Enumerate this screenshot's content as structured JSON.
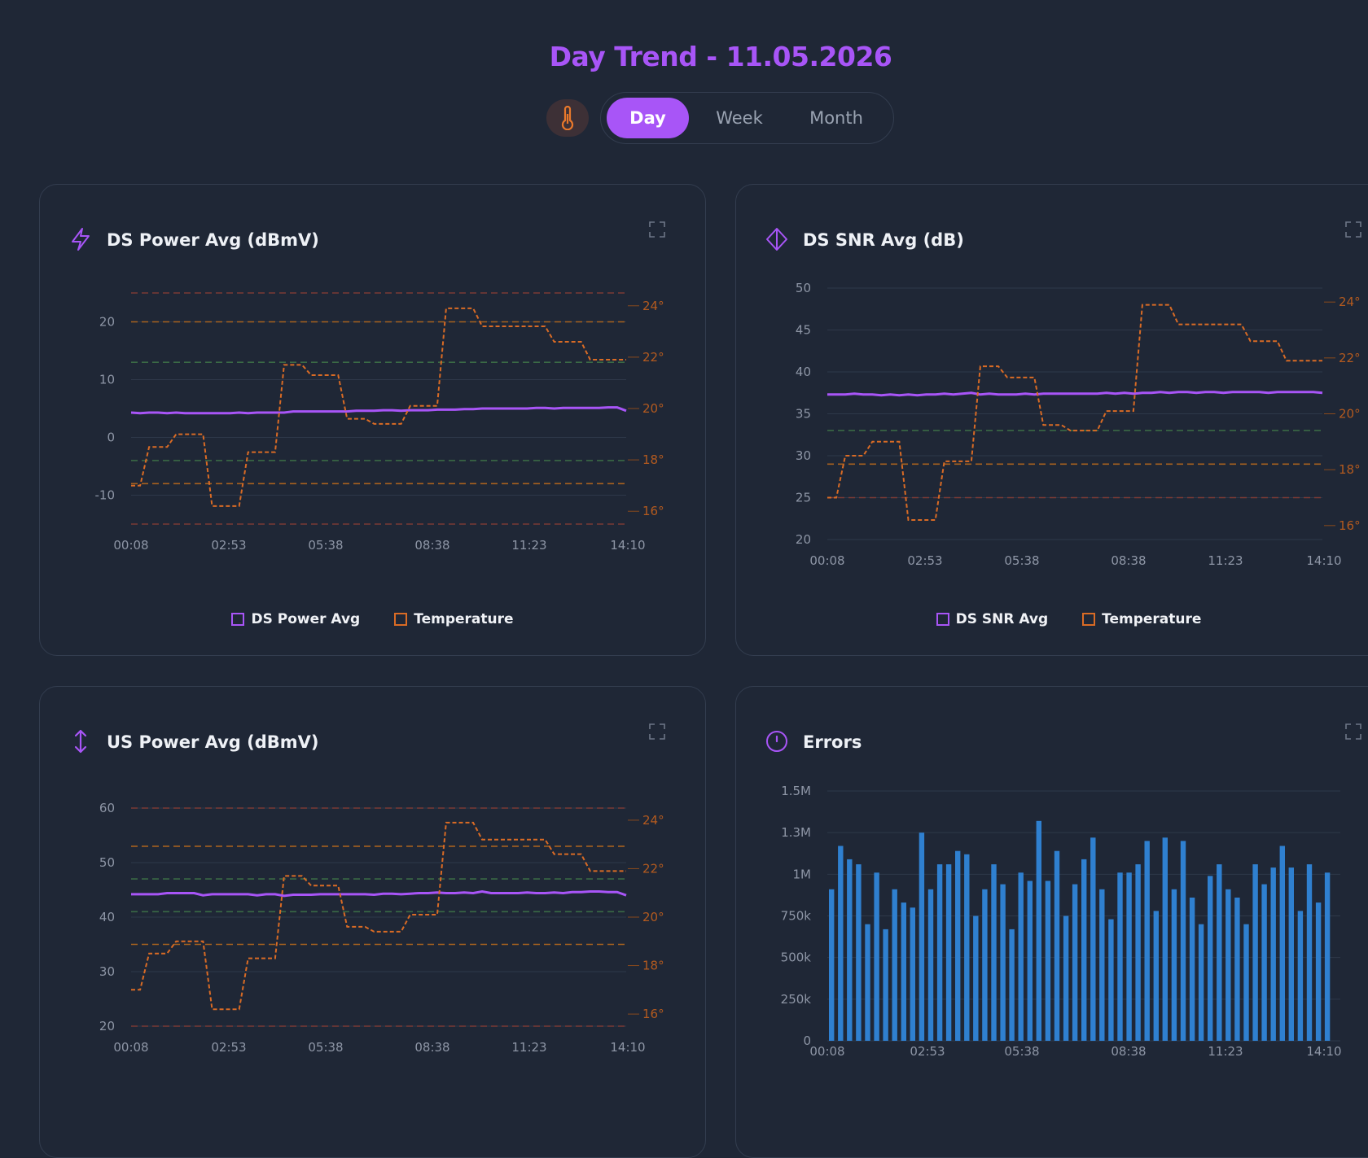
{
  "page": {
    "title": "Day Trend - 11.05.2026"
  },
  "controls": {
    "temperature_toggle_icon": "thermometer-icon",
    "ranges": [
      "Day",
      "Week",
      "Month"
    ],
    "active_range": "Day"
  },
  "colors": {
    "accent": "#a855f7",
    "temperature": "#d96b25",
    "errors_bar": "#2f80d0",
    "band_red": "#7a3a35",
    "band_orange": "#a8621f",
    "band_green": "#3a6a45"
  },
  "cards": {
    "ds_power": {
      "title": "DS Power Avg (dBmV)",
      "icon": "lightning-icon",
      "legend": [
        "DS Power Avg",
        "Temperature"
      ]
    },
    "ds_snr": {
      "title": "DS SNR Avg (dB)",
      "icon": "diamond-icon",
      "legend": [
        "DS SNR Avg",
        "Temperature"
      ]
    },
    "us_power": {
      "title": "US Power Avg (dBmV)",
      "icon": "up-down-arrow-icon",
      "legend": [
        "US Power Avg",
        "Temperature"
      ]
    },
    "errors": {
      "title": "Errors",
      "icon": "alert-circle-icon"
    }
  },
  "chart_data": [
    {
      "type": "line",
      "title": "DS Power Avg (dBmV)",
      "x_ticks": [
        "00:08",
        "02:53",
        "05:38",
        "08:38",
        "11:23",
        "14:10"
      ],
      "y_ticks": [
        20,
        10,
        0,
        -10
      ],
      "ylim": [
        -15,
        25
      ],
      "y2_ticks": [
        "24°",
        "22°",
        "20°",
        "18°",
        "16°"
      ],
      "y2lim": [
        15.5,
        24.5
      ],
      "thresholds": [
        {
          "value": 25,
          "color": "red"
        },
        {
          "value": 20,
          "color": "orange"
        },
        {
          "value": 13,
          "color": "green"
        },
        {
          "value": -4,
          "color": "green"
        },
        {
          "value": -8,
          "color": "orange"
        },
        {
          "value": -15,
          "color": "red"
        }
      ],
      "series": [
        {
          "name": "DS Power Avg",
          "values": [
            4.3,
            4.2,
            4.3,
            4.3,
            4.2,
            4.3,
            4.2,
            4.2,
            4.2,
            4.2,
            4.2,
            4.2,
            4.3,
            4.2,
            4.3,
            4.3,
            4.3,
            4.3,
            4.5,
            4.5,
            4.5,
            4.5,
            4.5,
            4.5,
            4.5,
            4.6,
            4.6,
            4.6,
            4.7,
            4.7,
            4.6,
            4.7,
            4.7,
            4.7,
            4.8,
            4.8,
            4.8,
            4.9,
            4.9,
            5.0,
            5.0,
            5.0,
            5.0,
            5.0,
            5.0,
            5.1,
            5.1,
            5.0,
            5.1,
            5.1,
            5.1,
            5.1,
            5.1,
            5.2,
            5.2,
            4.6
          ]
        },
        {
          "name": "Temperature",
          "y_axis": "right",
          "values": [
            17,
            17,
            18.5,
            18.5,
            18.5,
            19,
            19,
            19,
            19,
            16.2,
            16.2,
            16.2,
            16.2,
            18.3,
            18.3,
            18.3,
            18.3,
            21.7,
            21.7,
            21.7,
            21.3,
            21.3,
            21.3,
            21.3,
            19.6,
            19.6,
            19.6,
            19.4,
            19.4,
            19.4,
            19.4,
            20.1,
            20.1,
            20.1,
            20.1,
            23.9,
            23.9,
            23.9,
            23.9,
            23.2,
            23.2,
            23.2,
            23.2,
            23.2,
            23.2,
            23.2,
            23.2,
            22.6,
            22.6,
            22.6,
            22.6,
            21.9,
            21.9,
            21.9,
            21.9,
            21.9
          ]
        }
      ]
    },
    {
      "type": "line",
      "title": "DS SNR Avg (dB)",
      "x_ticks": [
        "00:08",
        "02:53",
        "05:38",
        "08:38",
        "11:23",
        "14:10"
      ],
      "y_ticks": [
        50,
        45,
        40,
        35,
        30,
        25,
        20
      ],
      "ylim": [
        20,
        50
      ],
      "y2_ticks": [
        "24°",
        "22°",
        "20°",
        "18°",
        "16°"
      ],
      "y2lim": [
        15.5,
        24.5
      ],
      "thresholds": [
        {
          "value": 33,
          "color": "green"
        },
        {
          "value": 29,
          "color": "orange"
        },
        {
          "value": 25,
          "color": "red"
        }
      ],
      "series": [
        {
          "name": "DS SNR Avg",
          "values": [
            37.3,
            37.3,
            37.3,
            37.4,
            37.3,
            37.3,
            37.2,
            37.3,
            37.2,
            37.3,
            37.2,
            37.3,
            37.3,
            37.4,
            37.3,
            37.4,
            37.5,
            37.3,
            37.4,
            37.3,
            37.3,
            37.3,
            37.4,
            37.3,
            37.4,
            37.4,
            37.4,
            37.4,
            37.4,
            37.4,
            37.4,
            37.5,
            37.4,
            37.5,
            37.4,
            37.5,
            37.5,
            37.6,
            37.5,
            37.6,
            37.6,
            37.5,
            37.6,
            37.6,
            37.5,
            37.6,
            37.6,
            37.6,
            37.6,
            37.5,
            37.6,
            37.6,
            37.6,
            37.6,
            37.6,
            37.5
          ]
        },
        {
          "name": "Temperature",
          "y_axis": "right",
          "values": [
            17,
            17,
            18.5,
            18.5,
            18.5,
            19,
            19,
            19,
            19,
            16.2,
            16.2,
            16.2,
            16.2,
            18.3,
            18.3,
            18.3,
            18.3,
            21.7,
            21.7,
            21.7,
            21.3,
            21.3,
            21.3,
            21.3,
            19.6,
            19.6,
            19.6,
            19.4,
            19.4,
            19.4,
            19.4,
            20.1,
            20.1,
            20.1,
            20.1,
            23.9,
            23.9,
            23.9,
            23.9,
            23.2,
            23.2,
            23.2,
            23.2,
            23.2,
            23.2,
            23.2,
            23.2,
            22.6,
            22.6,
            22.6,
            22.6,
            21.9,
            21.9,
            21.9,
            21.9,
            21.9
          ]
        }
      ]
    },
    {
      "type": "line",
      "title": "US Power Avg (dBmV)",
      "x_ticks": [
        "00:08",
        "02:53",
        "05:38",
        "08:38",
        "11:23",
        "14:10"
      ],
      "y_ticks": [
        60,
        50,
        40,
        30,
        20
      ],
      "ylim": [
        20,
        60
      ],
      "y2_ticks": [
        "24°",
        "22°",
        "20°",
        "18°",
        "16°"
      ],
      "y2lim": [
        15.5,
        24.5
      ],
      "thresholds": [
        {
          "value": 60,
          "color": "red"
        },
        {
          "value": 53,
          "color": "orange"
        },
        {
          "value": 47,
          "color": "green"
        },
        {
          "value": 41,
          "color": "green"
        },
        {
          "value": 35,
          "color": "orange"
        },
        {
          "value": 20,
          "color": "red"
        }
      ],
      "series": [
        {
          "name": "US Power Avg",
          "values": [
            44.2,
            44.2,
            44.2,
            44.2,
            44.4,
            44.4,
            44.4,
            44.4,
            44.0,
            44.2,
            44.2,
            44.2,
            44.2,
            44.2,
            44.0,
            44.2,
            44.2,
            43.9,
            44.1,
            44.1,
            44.1,
            44.2,
            44.2,
            44.2,
            44.2,
            44.2,
            44.2,
            44.1,
            44.3,
            44.3,
            44.2,
            44.3,
            44.4,
            44.4,
            44.5,
            44.4,
            44.4,
            44.5,
            44.4,
            44.7,
            44.4,
            44.4,
            44.4,
            44.4,
            44.5,
            44.4,
            44.4,
            44.5,
            44.4,
            44.6,
            44.6,
            44.7,
            44.7,
            44.6,
            44.6,
            44.0
          ]
        },
        {
          "name": "Temperature",
          "y_axis": "right",
          "values": [
            17,
            17,
            18.5,
            18.5,
            18.5,
            19,
            19,
            19,
            19,
            16.2,
            16.2,
            16.2,
            16.2,
            18.3,
            18.3,
            18.3,
            18.3,
            21.7,
            21.7,
            21.7,
            21.3,
            21.3,
            21.3,
            21.3,
            19.6,
            19.6,
            19.6,
            19.4,
            19.4,
            19.4,
            19.4,
            20.1,
            20.1,
            20.1,
            20.1,
            23.9,
            23.9,
            23.9,
            23.9,
            23.2,
            23.2,
            23.2,
            23.2,
            23.2,
            23.2,
            23.2,
            23.2,
            22.6,
            22.6,
            22.6,
            22.6,
            21.9,
            21.9,
            21.9,
            21.9,
            21.9
          ]
        }
      ]
    },
    {
      "type": "bar",
      "title": "Errors",
      "x_ticks": [
        "00:08",
        "02:53",
        "05:38",
        "08:38",
        "11:23",
        "14:10"
      ],
      "y_ticks": [
        "1.5M",
        "1.3M",
        "1M",
        "750k",
        "500k",
        "250k",
        "0"
      ],
      "ylim": [
        0,
        1500000
      ],
      "values": [
        910000,
        1170000,
        1090000,
        1060000,
        700000,
        1010000,
        670000,
        910000,
        830000,
        800000,
        1250000,
        910000,
        1060000,
        1060000,
        1140000,
        1120000,
        750000,
        910000,
        1060000,
        940000,
        670000,
        1010000,
        960000,
        1320000,
        960000,
        1140000,
        750000,
        940000,
        1090000,
        1220000,
        910000,
        730000,
        1010000,
        1010000,
        1060000,
        1200000,
        780000,
        1220000,
        910000,
        1200000,
        860000,
        700000,
        990000,
        1060000,
        910000,
        860000,
        700000,
        1060000,
        940000,
        1040000,
        1170000,
        1040000,
        780000,
        1060000,
        830000,
        1010000
      ]
    }
  ]
}
